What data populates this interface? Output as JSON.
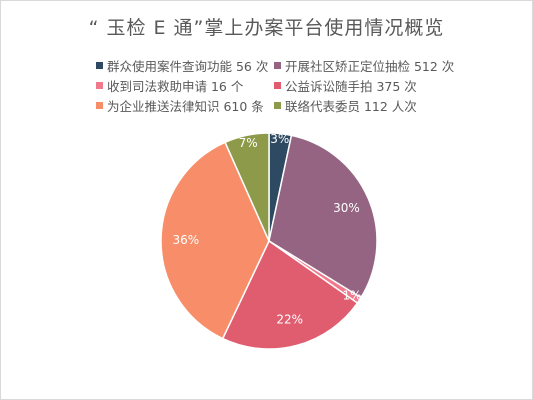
{
  "chart_data": {
    "type": "pie",
    "title": "“ 玉检 E 通”掌上办案平台使用情况概览",
    "legend_position": "top",
    "categories": [
      "群众使用案件查询功能 56 次",
      "开展社区矫正定位抽检 512 次",
      "收到司法救助申请 16 个",
      "公益诉讼随手拍 375 次",
      "为企业推送法律知识 610 条",
      "联络代表委员 112 人次"
    ],
    "values": [
      56,
      512,
      16,
      375,
      610,
      112
    ],
    "percent_labels": [
      "3%",
      "30%",
      "1%",
      "22%",
      "36%",
      "7%"
    ],
    "colors": [
      "#2e4a62",
      "#946482",
      "#f0798c",
      "#e05c6f",
      "#f78e69",
      "#8c9a4a"
    ]
  }
}
